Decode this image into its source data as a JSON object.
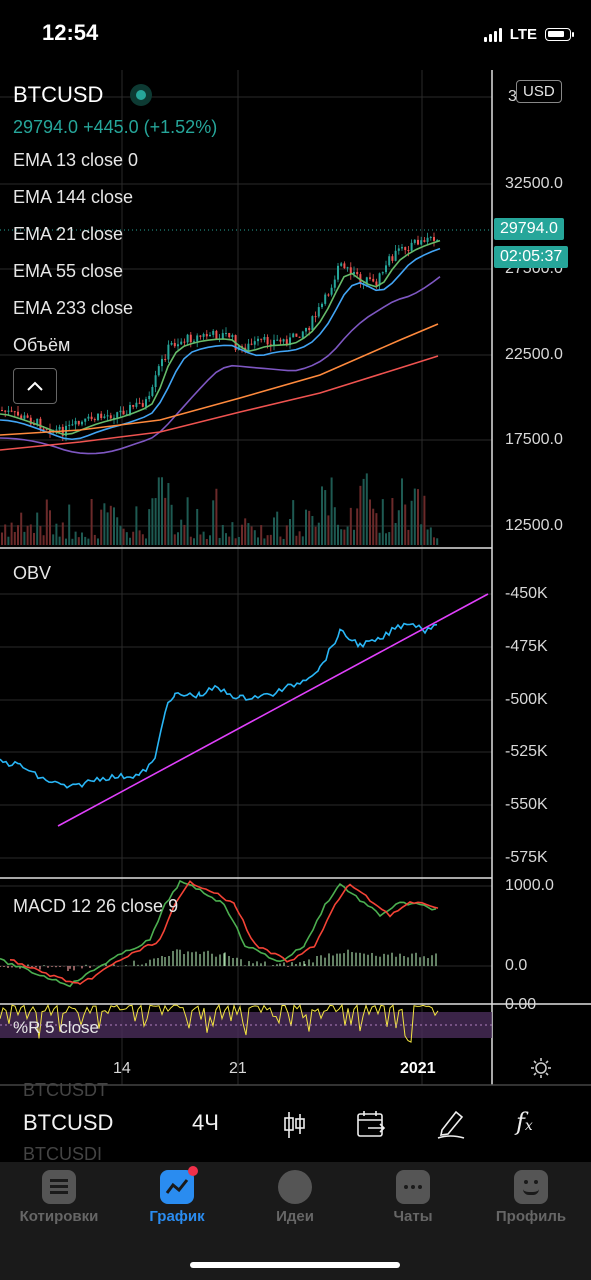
{
  "status": {
    "time": "12:54",
    "network": "LTE"
  },
  "header": {
    "symbol": "BTCUSD",
    "price_line": "29794.0",
    "change_line": "+445.0 (+1.52%)",
    "currency_badge": "USD"
  },
  "indicators": [
    "EMA 13 close 0",
    "EMA 144 close",
    "EMA 21 close",
    "EMA 55 close",
    "EMA 233 close",
    "Объём"
  ],
  "price_axis": {
    "top_partial": "3",
    "ticks": [
      "32500.0",
      "27500.0",
      "22500.0",
      "17500.0",
      "12500.0"
    ],
    "last_price": "29794.0",
    "countdown": "02:05:37"
  },
  "obv": {
    "label": "OBV",
    "ticks": [
      "-450K",
      "-475K",
      "-500K",
      "-525K",
      "-550K",
      "-575K"
    ]
  },
  "macd": {
    "label": "MACD 12 26 close 9",
    "ticks": [
      "1000.0",
      "0.0"
    ]
  },
  "williams": {
    "label": "%R 5 close",
    "tick": "0.00"
  },
  "time_axis": {
    "labels": [
      "14",
      "21",
      "2021"
    ]
  },
  "toolbar": {
    "symbol": "BTCUSD",
    "timeframe": "4Ч",
    "ghost_above": "BTCUSDT",
    "ghost_below": "BTCUSDI"
  },
  "tabs": [
    {
      "label": "Котировки",
      "icon": "quotes-icon"
    },
    {
      "label": "График",
      "icon": "chart-icon"
    },
    {
      "label": "Идеи",
      "icon": "ideas-icon"
    },
    {
      "label": "Чаты",
      "icon": "chats-icon"
    },
    {
      "label": "Профиль",
      "icon": "profile-icon"
    }
  ],
  "colors": {
    "up": "#26a69a",
    "ema13": "#66bb6a",
    "ema21": "#42a5f5",
    "ema55": "#7e57c2",
    "ema144": "#ff8a3d",
    "ema233": "#ef5350",
    "obv": "#29b6f6",
    "trend": "#e040fb",
    "macd": "#4caf50",
    "signal": "#f44336",
    "wr": "#f4e542",
    "accent": "#2a8cf0"
  }
}
